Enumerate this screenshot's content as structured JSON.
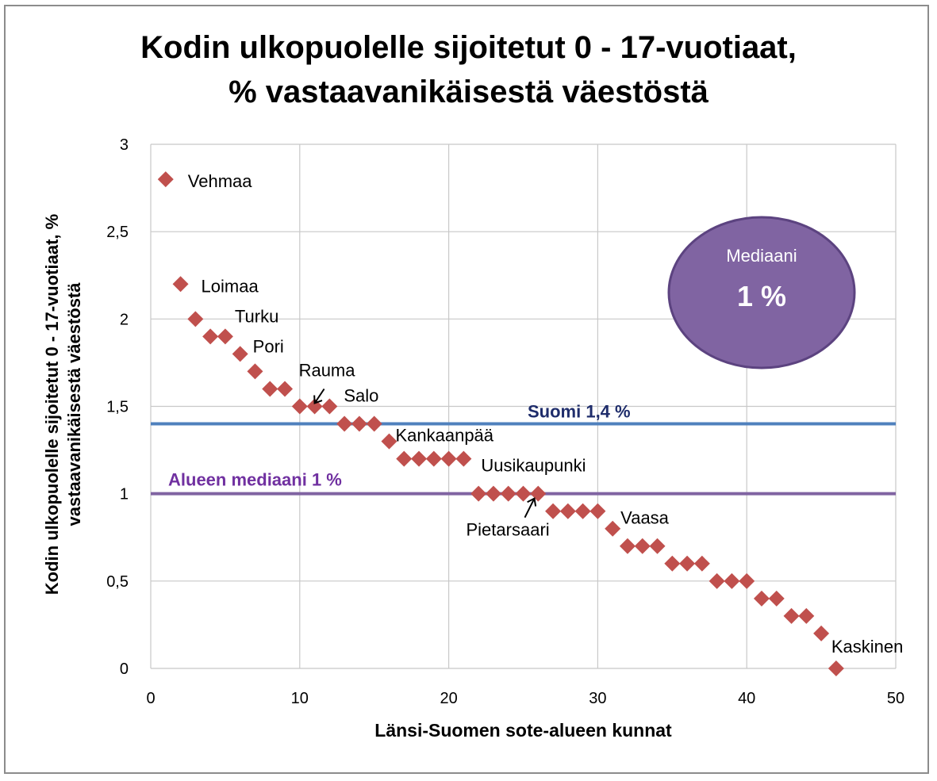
{
  "chart_data": {
    "type": "scatter",
    "title_line1": "Kodin ulkopuolelle sijoitetut 0 - 17-vuotiaat,",
    "title_line2": "% vastaavanikäisestä väestöstä",
    "xlabel": "Länsi-Suomen sote-alueen kunnat",
    "ylabel_line1": "Kodin ulkopuolelle sijoitetut 0 - 17-vuotiaat, %",
    "ylabel_line2": "vastaavanikäisestä väestöstä",
    "xlim": [
      0,
      50
    ],
    "ylim": [
      0,
      3
    ],
    "x_ticks": [
      "0",
      "10",
      "20",
      "30",
      "40",
      "50"
    ],
    "x_tick_values": [
      0,
      10,
      20,
      30,
      40,
      50
    ],
    "y_ticks": [
      "0",
      "0,5",
      "1",
      "1,5",
      "2",
      "2,5",
      "3"
    ],
    "y_tick_values": [
      0,
      0.5,
      1,
      1.5,
      2,
      2.5,
      3
    ],
    "grid": true,
    "marker_color": "#c0504d",
    "x": [
      1,
      2,
      3,
      4,
      5,
      6,
      7,
      8,
      9,
      10,
      11,
      12,
      13,
      14,
      15,
      16,
      17,
      18,
      19,
      20,
      21,
      22,
      23,
      24,
      25,
      26,
      27,
      28,
      29,
      30,
      31,
      32,
      33,
      34,
      35,
      36,
      37,
      38,
      39,
      40,
      41,
      42,
      43,
      44,
      45,
      46
    ],
    "y": [
      2.8,
      2.2,
      2.0,
      1.9,
      1.9,
      1.8,
      1.7,
      1.6,
      1.6,
      1.5,
      1.5,
      1.5,
      1.4,
      1.4,
      1.4,
      1.3,
      1.2,
      1.2,
      1.2,
      1.2,
      1.2,
      1.0,
      1.0,
      1.0,
      1.0,
      1.0,
      0.9,
      0.9,
      0.9,
      0.9,
      0.8,
      0.7,
      0.7,
      0.7,
      0.6,
      0.6,
      0.6,
      0.5,
      0.5,
      0.5,
      0.4,
      0.4,
      0.3,
      0.3,
      0.2,
      0.0
    ],
    "point_labels": [
      {
        "text": "Vehmaa",
        "x": 1,
        "y": 2.8
      },
      {
        "text": "Loimaa",
        "x": 2,
        "y": 2.2
      },
      {
        "text": "Turku",
        "x": 5,
        "y": 1.9
      },
      {
        "text": "Pori",
        "x": 6,
        "y": 1.8
      },
      {
        "text": "Rauma",
        "x": 11,
        "y": 1.5
      },
      {
        "text": "Salo",
        "x": 12,
        "y": 1.5
      },
      {
        "text": "Kankaanpää",
        "x": 16,
        "y": 1.3
      },
      {
        "text": "Uusikaupunki",
        "x": 21,
        "y": 1.2
      },
      {
        "text": "Pietarsaari",
        "x": 25,
        "y": 1.0
      },
      {
        "text": "Vaasa",
        "x": 31,
        "y": 0.8
      },
      {
        "text": "Kaskinen",
        "x": 46,
        "y": 0.0
      }
    ],
    "reference_lines": [
      {
        "label": "Suomi 1,4 %",
        "y": 1.4,
        "color": "#4f81bd",
        "label_color": "#1f2d6b"
      },
      {
        "label": "Alueen mediaani 1 %",
        "y": 1.0,
        "color": "#8064a2",
        "label_color": "#7030a0"
      }
    ],
    "median_badge": {
      "label": "Mediaani",
      "value": "1 %",
      "fill": "#8064a2",
      "border": "#5c4380"
    }
  }
}
